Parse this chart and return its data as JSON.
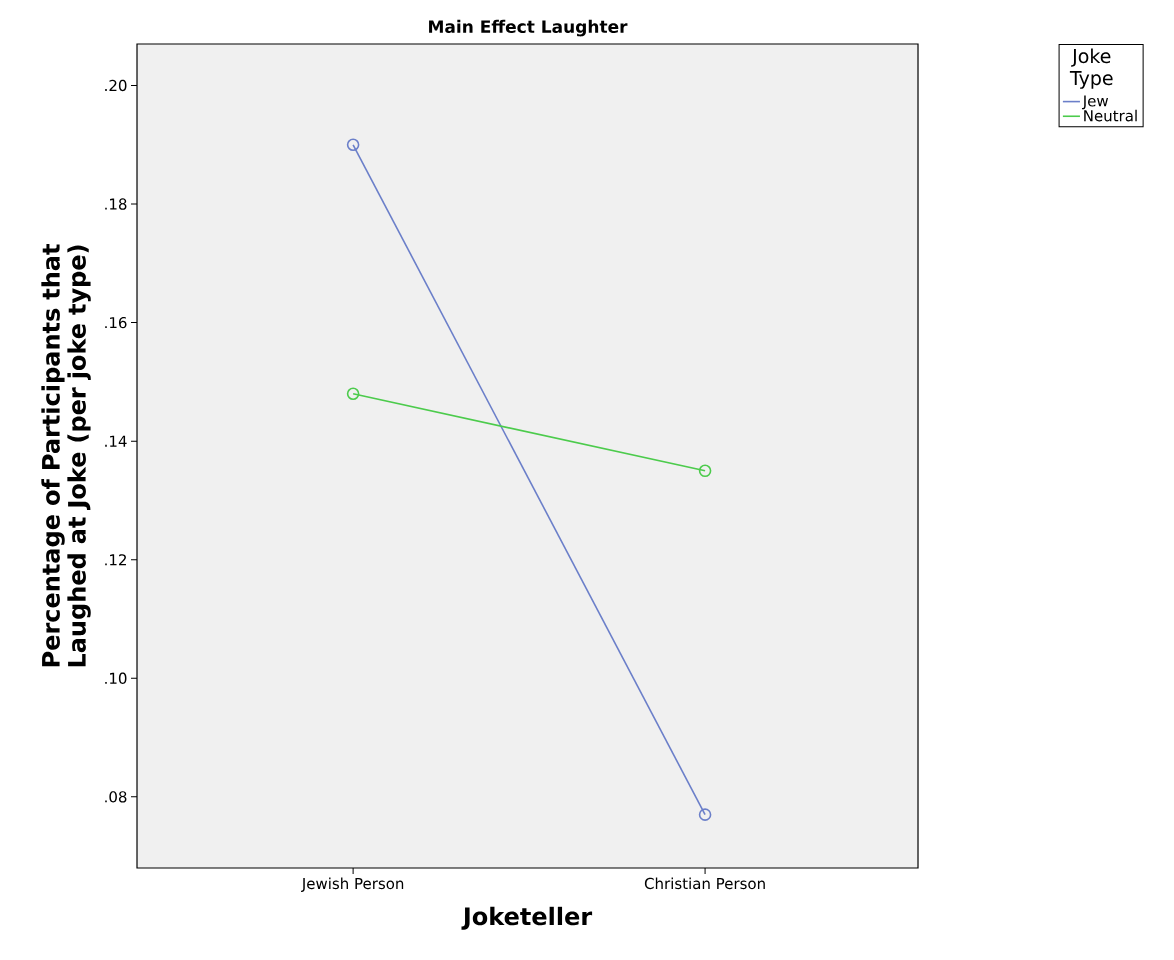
{
  "chart_data": {
    "type": "line",
    "title": "Main Effect Laughter",
    "xlabel": "Joketeller",
    "ylabel": "Percentage of Participants that Laughed at Joke (per joke type)",
    "legend_title": "Joke Type",
    "categories": [
      "Jewish Person",
      "Christian Person"
    ],
    "series": [
      {
        "name": "Jew",
        "color": "#6b7fc9",
        "values": [
          0.19,
          0.077
        ]
      },
      {
        "name": "Neutral",
        "color": "#4ccb4c",
        "values": [
          0.148,
          0.135
        ]
      }
    ],
    "ylim": [
      0.068,
      0.207
    ],
    "yticks": [
      {
        "value": 0.08,
        "label": ".08"
      },
      {
        "value": 0.1,
        "label": ".10"
      },
      {
        "value": 0.12,
        "label": ".12"
      },
      {
        "value": 0.14,
        "label": ".14"
      },
      {
        "value": 0.16,
        "label": ".16"
      },
      {
        "value": 0.18,
        "label": ".18"
      },
      {
        "value": 0.2,
        "label": ".20"
      }
    ],
    "legend": "top right",
    "marker": "circle",
    "line_style": "solid",
    "grid": false
  }
}
